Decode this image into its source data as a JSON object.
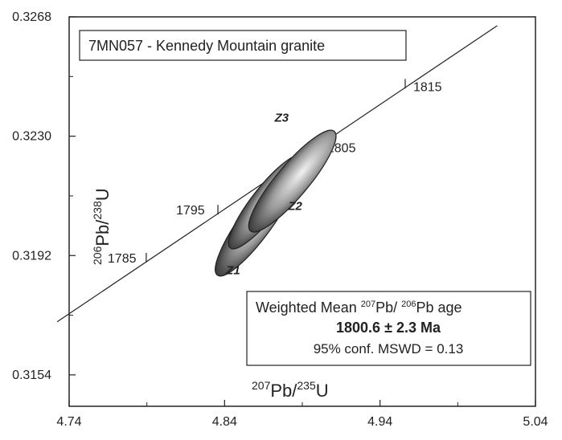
{
  "chart_data": {
    "type": "scatter",
    "title": "7MN057 - Kennedy Mountain granite",
    "xlabel": {
      "prefix": "207",
      "base": "Pb/",
      "prefix2": "235",
      "base2": "U"
    },
    "ylabel": {
      "prefix": "206",
      "base": "Pb/",
      "prefix2": "238",
      "base2": "U"
    },
    "xlim": [
      4.74,
      5.04
    ],
    "ylim": [
      0.3144,
      0.3268
    ],
    "x_ticks": [
      "4.74",
      "4.84",
      "4.94",
      "5.04"
    ],
    "x_tick_values": [
      4.74,
      4.84,
      4.94,
      5.04
    ],
    "y_ticks": [
      "0.3154",
      "0.3192",
      "0.3230",
      "0.3268"
    ],
    "y_tick_values": [
      0.3154,
      0.3192,
      0.323,
      0.3268
    ],
    "concordia": {
      "x": [
        4.7323,
        5.0154
      ],
      "y": [
        0.31709,
        0.32652
      ],
      "age_marks": [
        {
          "label": "1785",
          "x": 4.7896,
          "y": 0.31913
        },
        {
          "label": "1795",
          "x": 4.8357,
          "y": 0.32066
        },
        {
          "label": "1805",
          "x": 4.8977,
          "y": 0.32272
        },
        {
          "label": "1815",
          "x": 4.9562,
          "y": 0.32467
        }
      ]
    },
    "ellipses": [
      {
        "label": "Z1",
        "cx": 4.8606,
        "cy": 0.32029,
        "rx_px": 20,
        "ry_px": 83,
        "angle": 36
      },
      {
        "label": "Z2",
        "cx": 4.8669,
        "cy": 0.32091,
        "rx_px": 18,
        "ry_px": 73,
        "angle": 38
      },
      {
        "label": "Z3",
        "cx": 4.8836,
        "cy": 0.32157,
        "rx_px": 20,
        "ry_px": 81,
        "angle": 40
      }
    ],
    "result_box": {
      "line1_text": "Weighted Mean ",
      "line1_sup1": "207",
      "line1_mid": "Pb/ ",
      "line1_sup2": "206",
      "line1_end": "Pb age",
      "line2": "1800.6 ± 2.3 Ma",
      "line3": "95% conf. MSWD = 0.13"
    },
    "grid": false
  }
}
